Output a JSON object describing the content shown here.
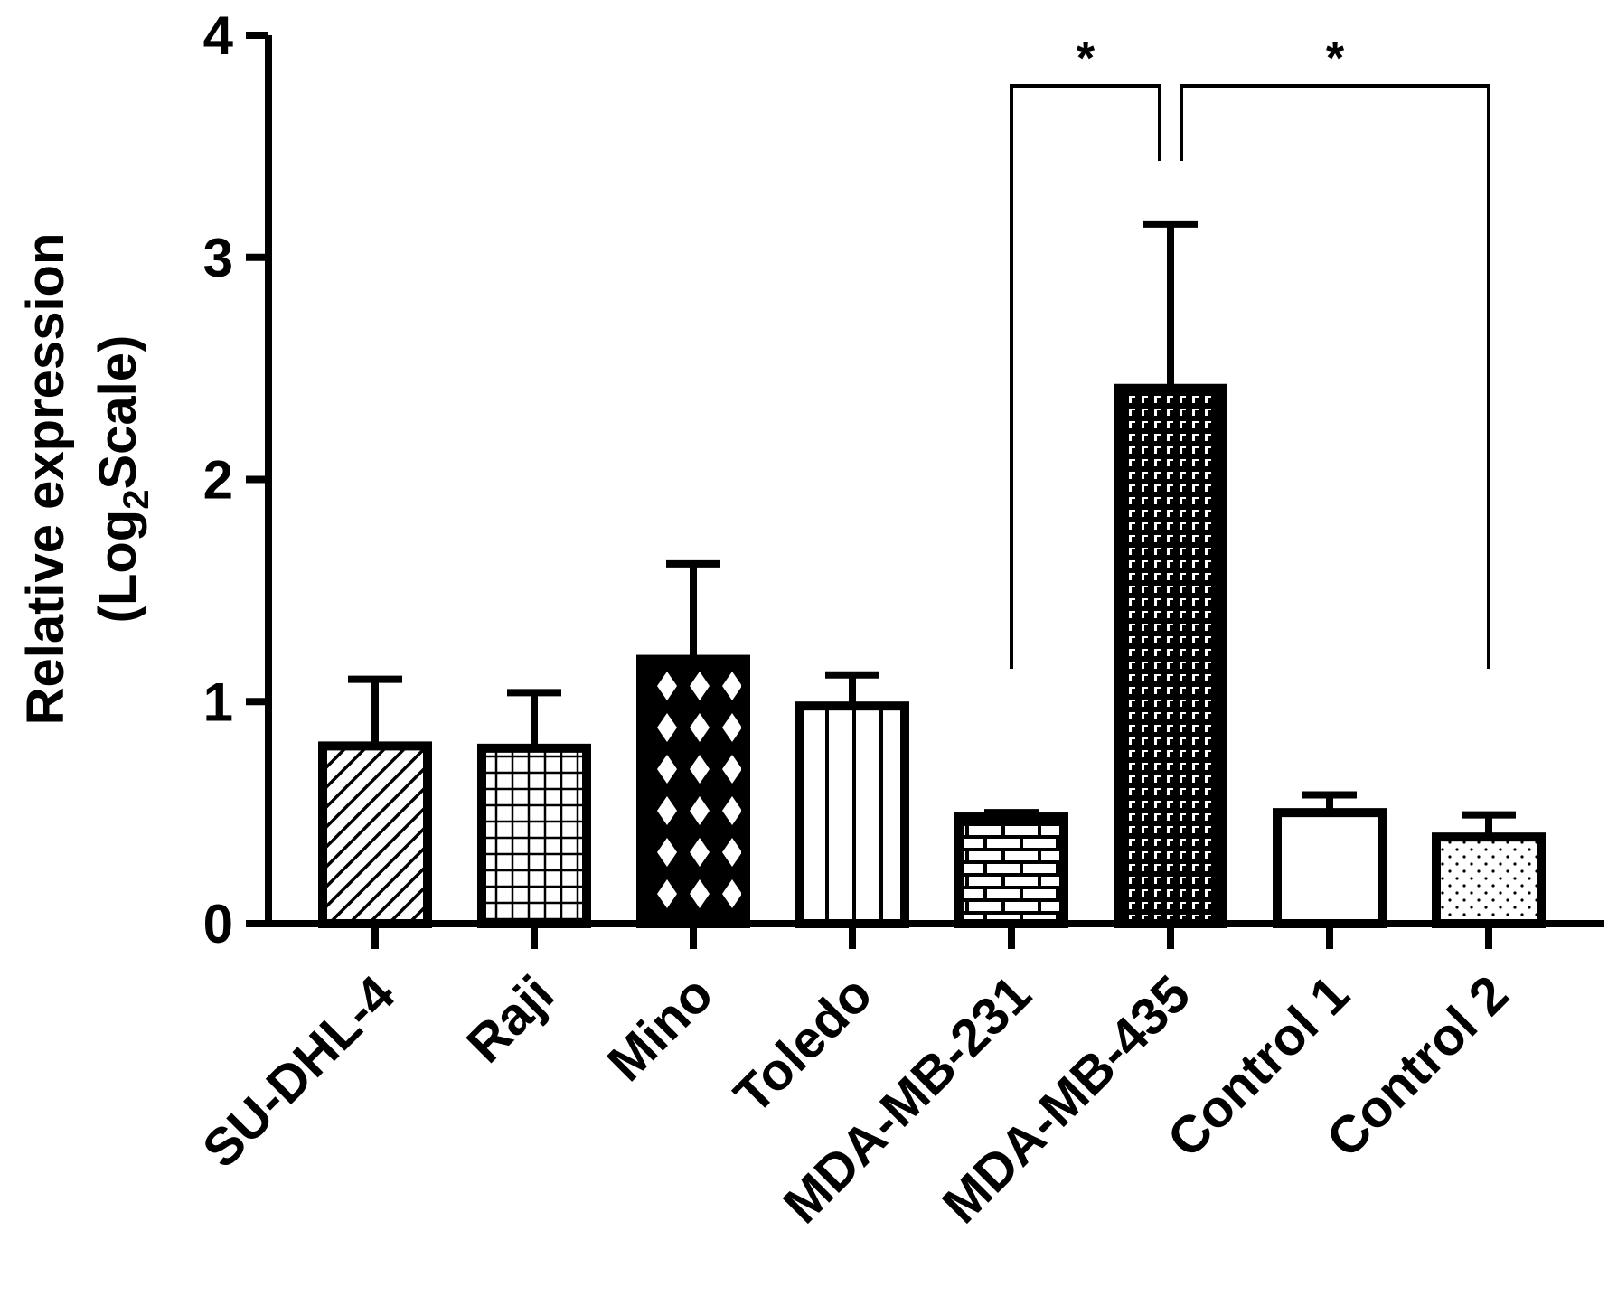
{
  "chart_data": {
    "type": "bar",
    "title": "",
    "xlabel": "",
    "ylabel_line1": "Relative expression",
    "ylabel_line2_prefix": "(Log",
    "ylabel_line2_subscript": "2",
    "ylabel_line2_suffix": "Scale)",
    "ylim": [
      0,
      4
    ],
    "yticks": [
      "0",
      "1",
      "2",
      "3",
      "4"
    ],
    "grid": false,
    "legend": "none",
    "categories": [
      "SU-DHL-4",
      "Raji",
      "Mino",
      "Toledo",
      "MDA-MB-231",
      "MDA-MB-435",
      "Control 1",
      "Control 2"
    ],
    "values": [
      0.8,
      0.79,
      1.19,
      0.98,
      0.48,
      2.41,
      0.5,
      0.39
    ],
    "error_upper": [
      1.1,
      1.04,
      1.62,
      1.12,
      0.5,
      3.15,
      0.58,
      0.49
    ],
    "patterns": [
      "diagonal-hatch",
      "grid",
      "diamonds",
      "vertical-lines",
      "bricks",
      "dashes",
      "none",
      "dots"
    ],
    "significance": [
      {
        "from": "MDA-MB-231",
        "to": "MDA-MB-435",
        "label": "*"
      },
      {
        "from": "MDA-MB-435",
        "to": "Control 2",
        "label": "*"
      }
    ],
    "colors": {
      "ink": "#000000",
      "background": "#ffffff"
    }
  }
}
